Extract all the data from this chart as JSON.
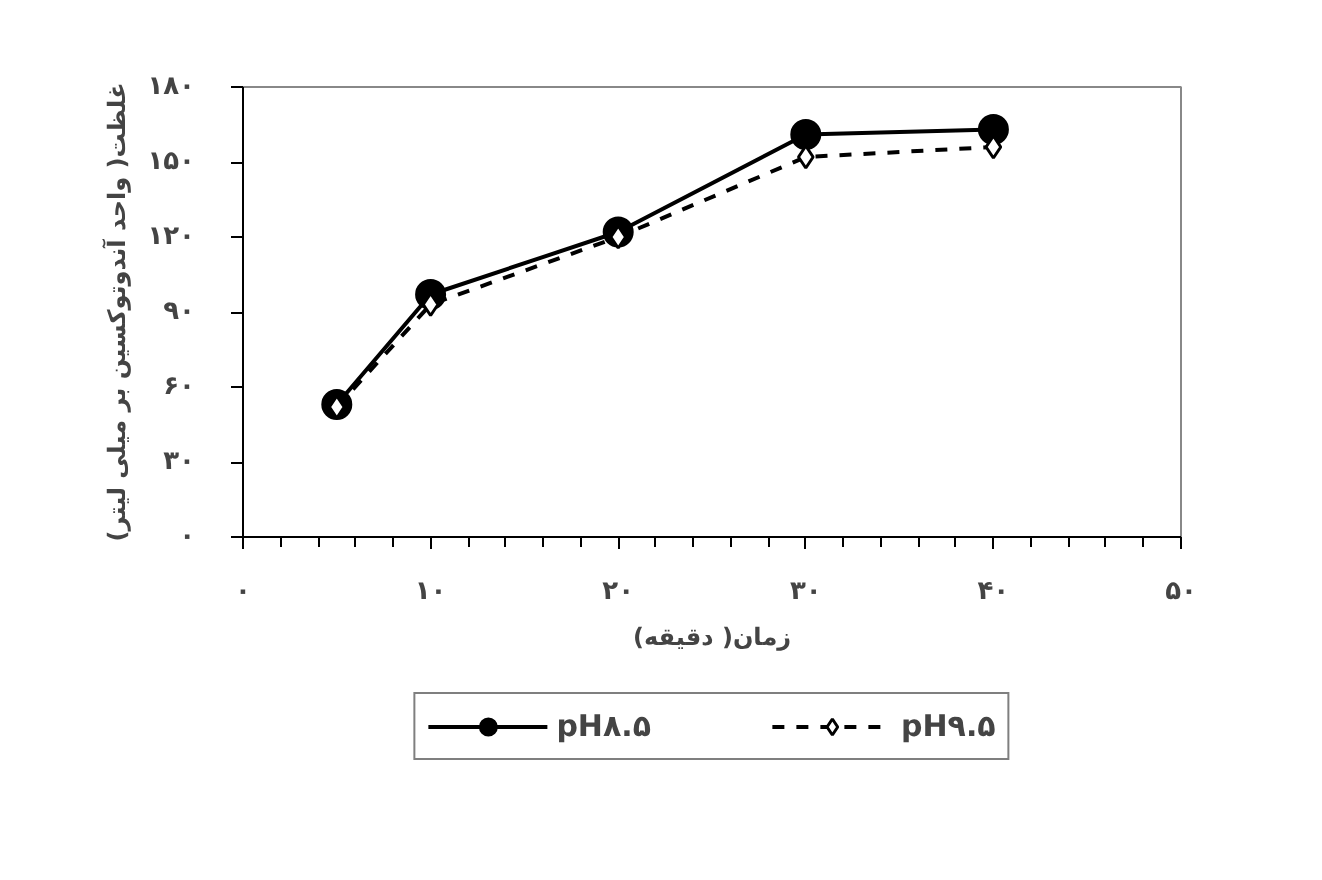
{
  "chart_data": {
    "type": "line",
    "xlabel": "زمان( دقیقه)",
    "ylabel": "غلظت( واحد آندوتوکسین بر میلی لیتر)",
    "x": [
      5,
      10,
      20,
      30,
      40
    ],
    "series": [
      {
        "name": "pH۸.۵",
        "color": "#000000",
        "values": [
          53,
          97,
          122,
          161,
          163
        ],
        "marker": "circle",
        "line_style": "solid"
      },
      {
        "name": "pH۹.۵",
        "color": "#000000",
        "values": [
          52,
          93,
          120,
          152,
          156
        ],
        "marker": "diamond",
        "line_style": "dashed"
      }
    ],
    "xlim": [
      0,
      50
    ],
    "xticks": [
      {
        "value": 0,
        "label": "۰"
      },
      {
        "value": 10,
        "label": "۱۰"
      },
      {
        "value": 20,
        "label": "۲۰"
      },
      {
        "value": 30,
        "label": "۳۰"
      },
      {
        "value": 40,
        "label": "۴۰"
      },
      {
        "value": 50,
        "label": "۵۰"
      }
    ],
    "ylim": [
      0,
      180
    ],
    "yticks": [
      {
        "value": 0,
        "label": "۰"
      },
      {
        "value": 30,
        "label": "۳۰"
      },
      {
        "value": 60,
        "label": "۶۰"
      },
      {
        "value": 90,
        "label": "۹۰"
      },
      {
        "value": 120,
        "label": "۱۲۰"
      },
      {
        "value": 150,
        "label": "۱۵۰"
      },
      {
        "value": 180,
        "label": "۱۸۰"
      }
    ],
    "grid": false,
    "legend": "bottom"
  }
}
